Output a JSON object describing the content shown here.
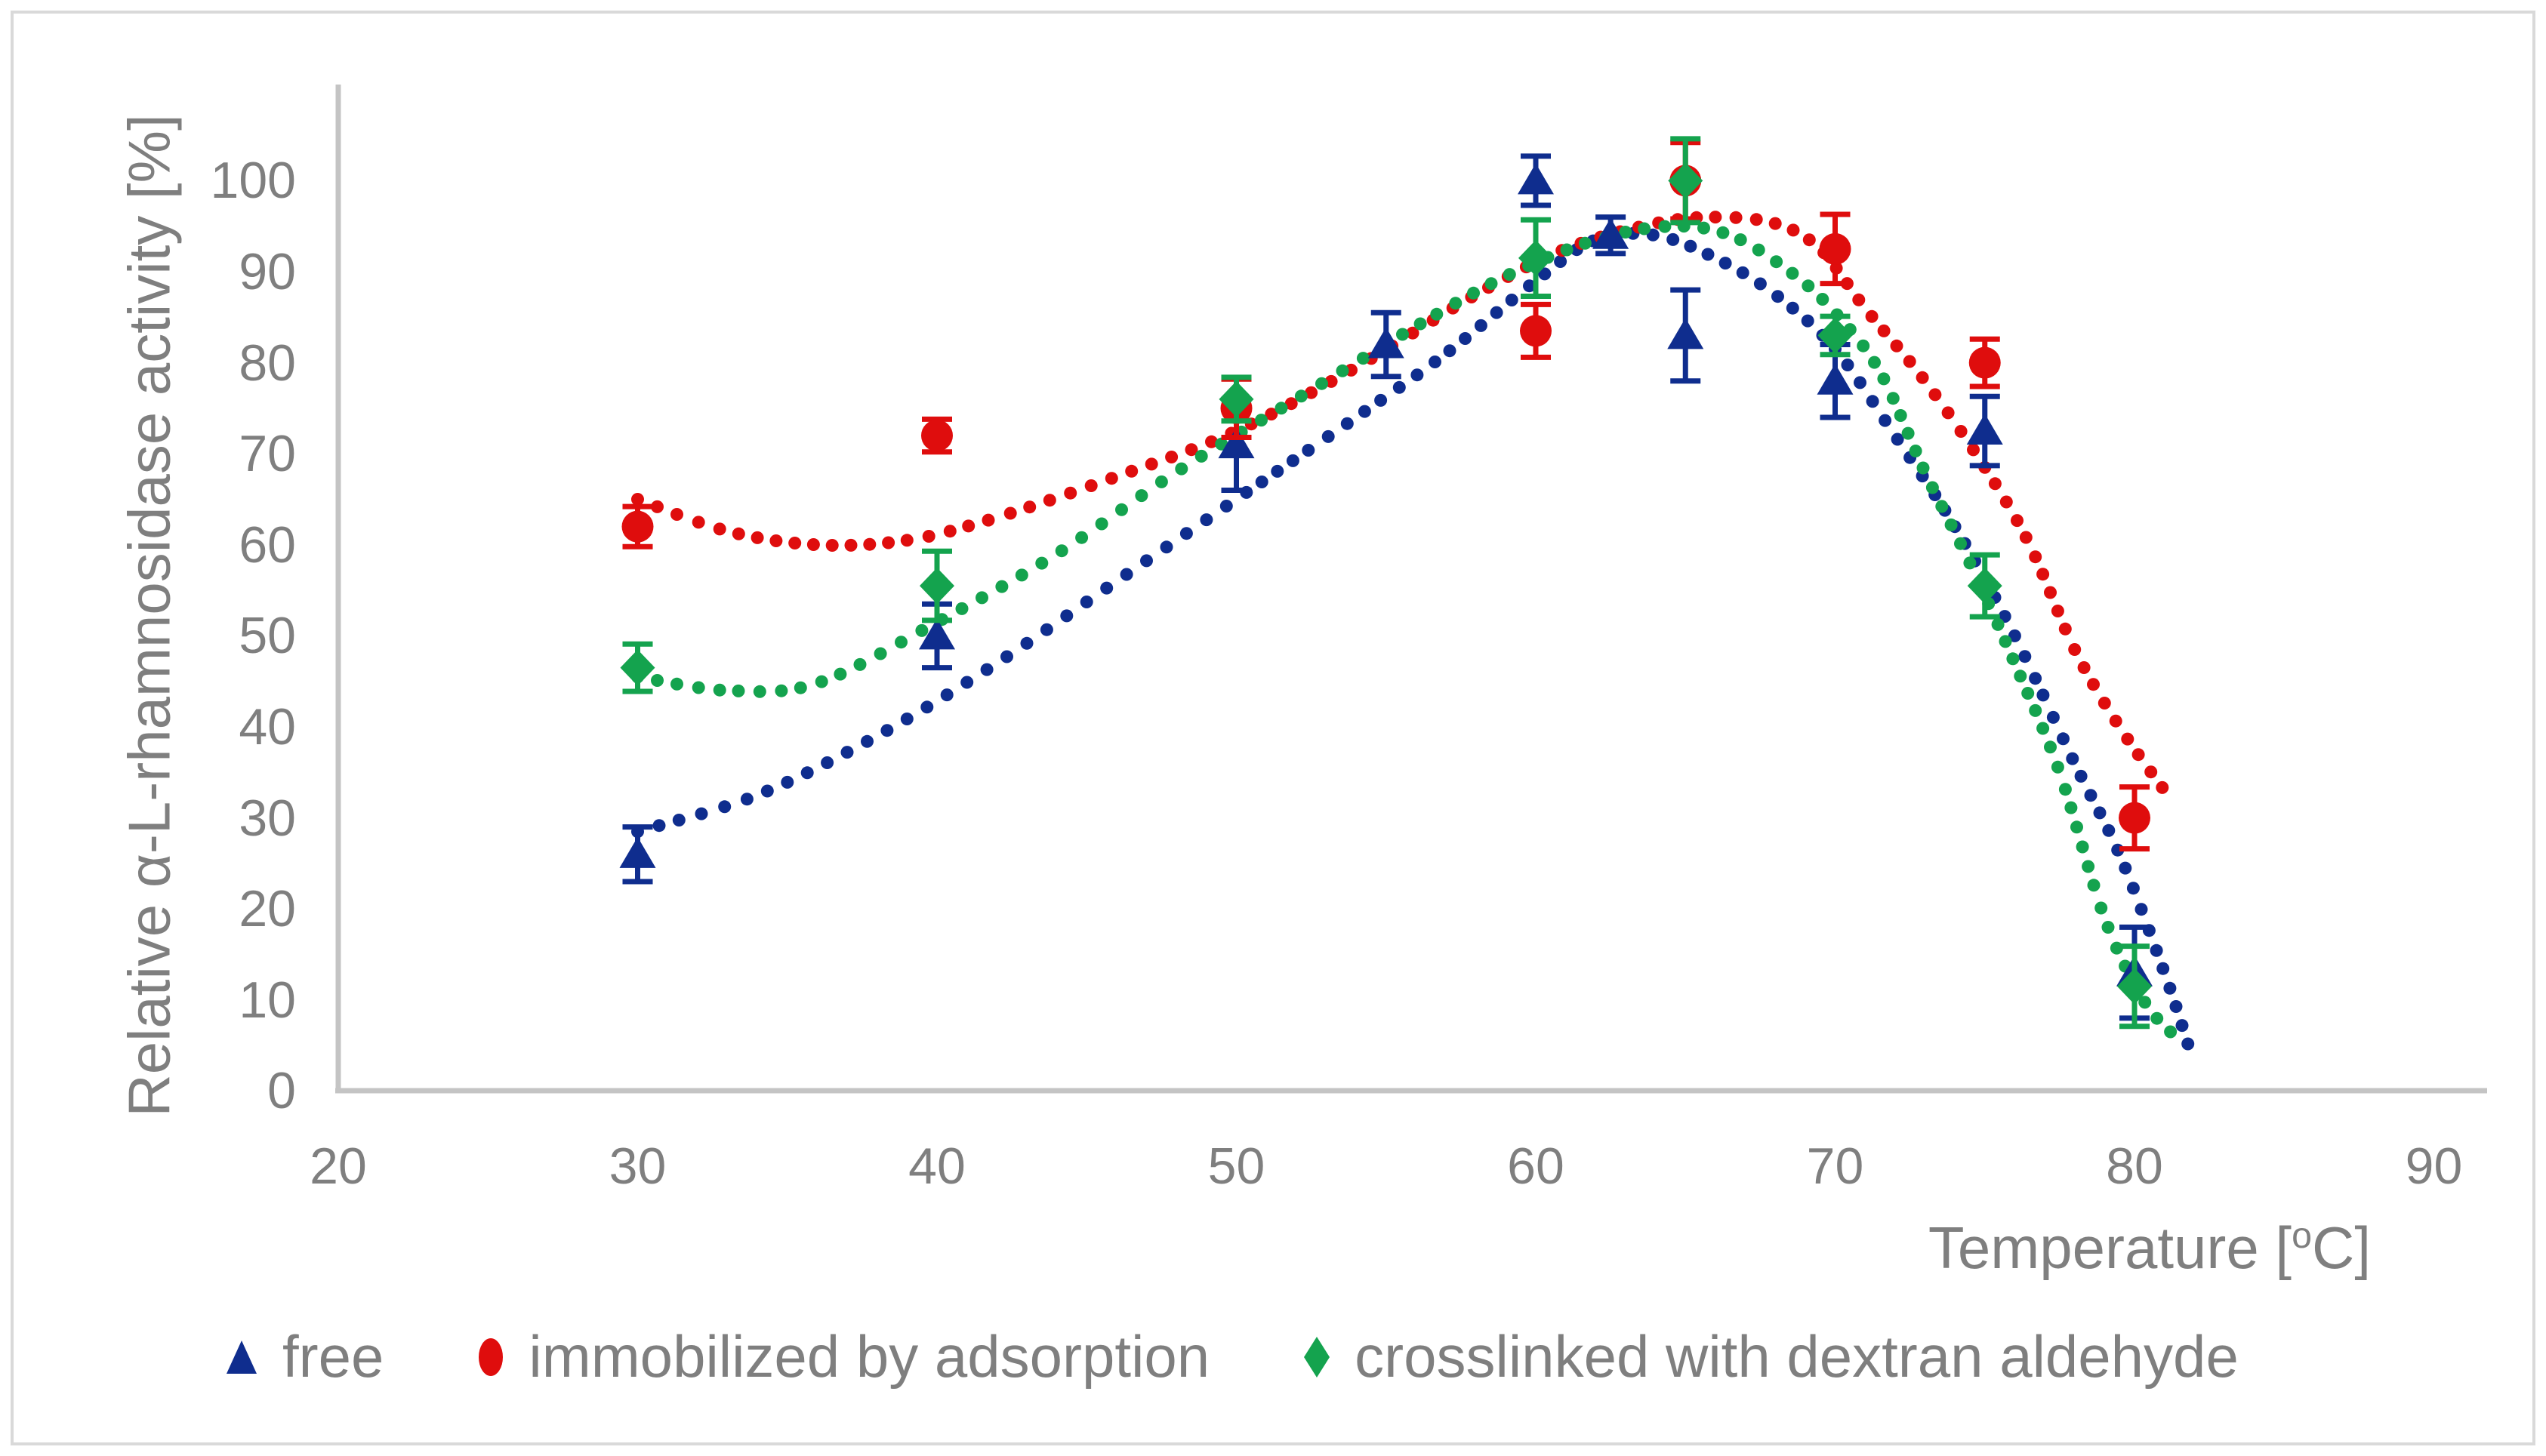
{
  "chart_data": {
    "type": "scatter",
    "title": "",
    "ylabel": "Relative α-L-rhamnosidase activity [%]",
    "xlabel": {
      "prefix": "Temperature [",
      "sup": "o",
      "suffix": "C]"
    },
    "xlim": [
      20,
      90
    ],
    "ylim": [
      0,
      100
    ],
    "x_ticks": [
      20,
      30,
      40,
      50,
      60,
      70,
      80,
      90
    ],
    "y_ticks": [
      0,
      10,
      20,
      30,
      40,
      50,
      60,
      70,
      80,
      90,
      100
    ],
    "grid": false,
    "legend_position": "bottom",
    "axis_color": "#c4c4c4",
    "text_color": "#7f7f7f",
    "series": [
      {
        "name": "free",
        "marker": "triangle",
        "color": "#0f2d8e",
        "points": [
          {
            "x": 30,
            "y": 26,
            "err": 3
          },
          {
            "x": 40,
            "y": 50,
            "err": 3.5
          },
          {
            "x": 50,
            "y": 71,
            "err": 5
          },
          {
            "x": 55,
            "y": 82,
            "err": 3.5
          },
          {
            "x": 60,
            "y": 100,
            "err": 2.7
          },
          {
            "x": 62.5,
            "y": 94,
            "err": 2
          },
          {
            "x": 65,
            "y": 83,
            "err": 5
          },
          {
            "x": 70,
            "y": 78,
            "err": 4
          },
          {
            "x": 75,
            "y": 72.5,
            "err": 3.8
          },
          {
            "x": 80,
            "y": 13,
            "err": 5
          }
        ],
        "trend": [
          [
            30,
            28.5
          ],
          [
            34,
            32.5
          ],
          [
            38,
            39
          ],
          [
            42,
            47
          ],
          [
            46,
            56
          ],
          [
            50,
            65
          ],
          [
            54,
            74
          ],
          [
            57,
            81
          ],
          [
            60,
            89
          ],
          [
            62,
            93.5
          ],
          [
            64,
            94
          ],
          [
            66,
            91.5
          ],
          [
            68,
            87.5
          ],
          [
            70,
            81.5
          ],
          [
            72,
            72
          ],
          [
            74,
            62
          ],
          [
            76,
            50
          ],
          [
            78,
            36
          ],
          [
            79.5,
            26
          ],
          [
            81,
            13
          ],
          [
            81.8,
            5
          ]
        ]
      },
      {
        "name": "immobilized by adsorption",
        "marker": "circle",
        "color": "#df0d0d",
        "points": [
          {
            "x": 30,
            "y": 62,
            "err": 2.2
          },
          {
            "x": 40,
            "y": 72,
            "err": 1.8
          },
          {
            "x": 50,
            "y": 75,
            "err": 3.2
          },
          {
            "x": 60,
            "y": 83.5,
            "err": 2.9
          },
          {
            "x": 65,
            "y": 100,
            "err": 4.2
          },
          {
            "x": 70,
            "y": 92.5,
            "err": 3.8
          },
          {
            "x": 75,
            "y": 80,
            "err": 2.6
          },
          {
            "x": 80,
            "y": 30,
            "err": 3.4
          }
        ],
        "trend": [
          [
            30,
            65
          ],
          [
            33,
            61.5
          ],
          [
            36,
            60
          ],
          [
            39,
            60.5
          ],
          [
            42,
            63
          ],
          [
            46,
            67.5
          ],
          [
            50,
            72.5
          ],
          [
            54,
            79.5
          ],
          [
            58,
            87.5
          ],
          [
            61,
            92.5
          ],
          [
            64,
            95.3
          ],
          [
            66,
            96
          ],
          [
            68,
            95.3
          ],
          [
            69.5,
            92.5
          ],
          [
            71,
            86
          ],
          [
            73,
            78
          ],
          [
            75,
            68.5
          ],
          [
            76.5,
            60
          ],
          [
            78,
            48.5
          ],
          [
            79.5,
            40
          ],
          [
            81,
            33
          ]
        ]
      },
      {
        "name": "crosslinked with dextran aldehyde",
        "marker": "diamond",
        "color": "#14a34e",
        "points": [
          {
            "x": 30,
            "y": 46.5,
            "err": 2.6
          },
          {
            "x": 40,
            "y": 55.5,
            "err": 3.8
          },
          {
            "x": 50,
            "y": 76,
            "err": 2.4
          },
          {
            "x": 60,
            "y": 91.5,
            "err": 4.2
          },
          {
            "x": 65,
            "y": 100,
            "err": 4.6
          },
          {
            "x": 70,
            "y": 83,
            "err": 2.1
          },
          {
            "x": 75,
            "y": 55.5,
            "err": 3.4
          },
          {
            "x": 80,
            "y": 11.5,
            "err": 4.4
          }
        ],
        "trend": [
          [
            30,
            45.5
          ],
          [
            33,
            44
          ],
          [
            36,
            44.8
          ],
          [
            40,
            51.5
          ],
          [
            44,
            59
          ],
          [
            48,
            68
          ],
          [
            52,
            76
          ],
          [
            56,
            84
          ],
          [
            59,
            89.5
          ],
          [
            62,
            93.5
          ],
          [
            64.5,
            95
          ],
          [
            66.5,
            94
          ],
          [
            68.5,
            90
          ],
          [
            70,
            85.5
          ],
          [
            71.5,
            79
          ],
          [
            73,
            68
          ],
          [
            74.5,
            58
          ],
          [
            76,
            47
          ],
          [
            77.5,
            35
          ],
          [
            79,
            19
          ],
          [
            80.3,
            10
          ],
          [
            81.2,
            6.5
          ]
        ]
      }
    ]
  },
  "legend": {
    "items": [
      {
        "label": "free"
      },
      {
        "label": "immobilized by adsorption"
      },
      {
        "label": "crosslinked with dextran aldehyde"
      }
    ]
  }
}
